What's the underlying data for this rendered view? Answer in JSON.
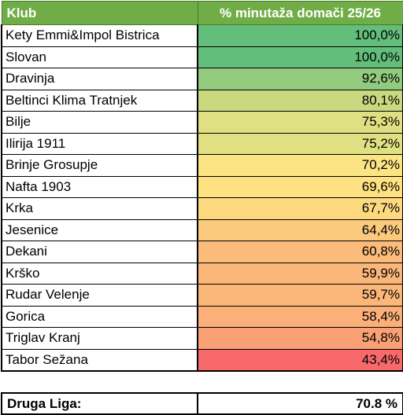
{
  "header": {
    "club": "Klub",
    "metric": "% minutaža domači 25/26"
  },
  "rows": [
    {
      "club": "Kety Emmi&Impol Bistrica",
      "value": "100,0%",
      "color": "#63be7b"
    },
    {
      "club": "Slovan",
      "value": "100,0%",
      "color": "#63be7b"
    },
    {
      "club": "Dravinja",
      "value": "92,6%",
      "color": "#92cb7e"
    },
    {
      "club": "Beltinci Klima Tratnjek",
      "value": "80,1%",
      "color": "#c9d980"
    },
    {
      "club": "Bilje",
      "value": "75,3%",
      "color": "#dfe082"
    },
    {
      "club": "Ilirija 1911",
      "value": "75,2%",
      "color": "#dfe082"
    },
    {
      "club": "Brinje Grosupje",
      "value": "70,2%",
      "color": "#fbe483"
    },
    {
      "club": "Nafta 1903",
      "value": "69,6%",
      "color": "#fee282"
    },
    {
      "club": "Krka",
      "value": "67,7%",
      "color": "#fdd980"
    },
    {
      "club": "Jesenice",
      "value": "64,4%",
      "color": "#fcca7d"
    },
    {
      "club": "Dekani",
      "value": "60,8%",
      "color": "#fbbb7a"
    },
    {
      "club": "Krško",
      "value": "59,9%",
      "color": "#fbb77a"
    },
    {
      "club": "Rudar Velenje",
      "value": "59,7%",
      "color": "#fbb67a"
    },
    {
      "club": "Gorica",
      "value": "58,4%",
      "color": "#fbb079"
    },
    {
      "club": "Triglav Kranj",
      "value": "54,8%",
      "color": "#faa075"
    },
    {
      "club": "Tabor Sežana",
      "value": "43,4%",
      "color": "#f8696b"
    }
  ],
  "summary": {
    "label": "Druga Liga:",
    "value": "70.8 %"
  }
}
